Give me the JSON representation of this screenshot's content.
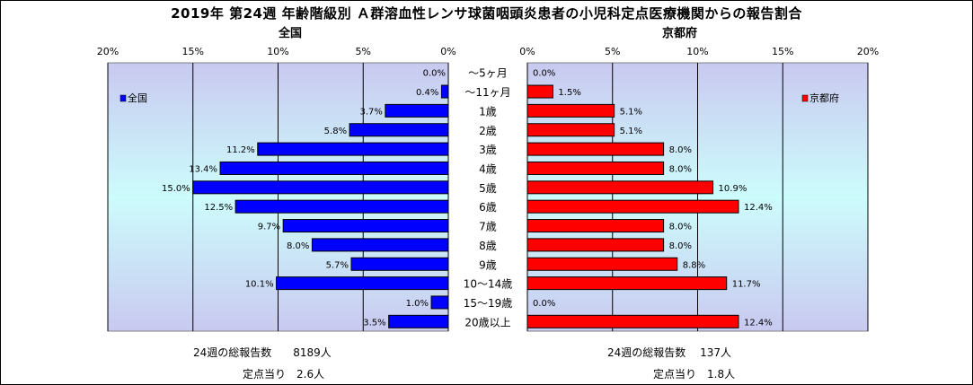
{
  "title": "2019年 第24週 年齢階級別 Ａ群溶血性レンサ球菌咽頭炎患者の小児科定点医療機関からの報告割合",
  "left_label": "全国",
  "right_label": "京都府",
  "left_total": "24週の総報告数　　8189人",
  "left_per": "定点当り　2.6人",
  "right_total": "24週の総報告数　 137人",
  "right_per": "定点当り　1.8人",
  "colors": {
    "left": "#0000ff",
    "right": "#ff0000",
    "plot_top": "#c9c9f0",
    "plot_mid": "#ccfcfc"
  },
  "chart_data": {
    "type": "bar",
    "categories": [
      "～5ヶ月",
      "～11ヶ月",
      "1歳",
      "2歳",
      "3歳",
      "4歳",
      "5歳",
      "6歳",
      "7歳",
      "8歳",
      "9歳",
      "10～14歳",
      "15～19歳",
      "20歳以上"
    ],
    "series": [
      {
        "name": "全国",
        "values": [
          0.0,
          0.4,
          3.7,
          5.8,
          11.2,
          13.4,
          15.0,
          12.5,
          9.7,
          8.0,
          5.7,
          10.1,
          1.0,
          3.5
        ],
        "labels": [
          "0.0%",
          "0.4%",
          "3.7%",
          "5.8%",
          "11.2%",
          "13.4%",
          "15.0%",
          "12.5%",
          "9.7%",
          "8.0%",
          "5.7%",
          "10.1%",
          "1.0%",
          "3.5%"
        ]
      },
      {
        "name": "京都府",
        "values": [
          0.0,
          1.5,
          5.1,
          5.1,
          8.0,
          8.0,
          10.9,
          12.4,
          8.0,
          8.0,
          8.8,
          11.7,
          0.0,
          12.4
        ],
        "labels": [
          "0.0%",
          "1.5%",
          "5.1%",
          "5.1%",
          "8.0%",
          "8.0%",
          "10.9%",
          "12.4%",
          "8.0%",
          "8.0%",
          "8.8%",
          "11.7%",
          "0.0%",
          "12.4%"
        ]
      }
    ],
    "xlim": [
      0,
      20
    ],
    "ticks": [
      "0%",
      "5%",
      "10%",
      "15%",
      "20%"
    ],
    "legend_position": "inside-top-outer"
  }
}
